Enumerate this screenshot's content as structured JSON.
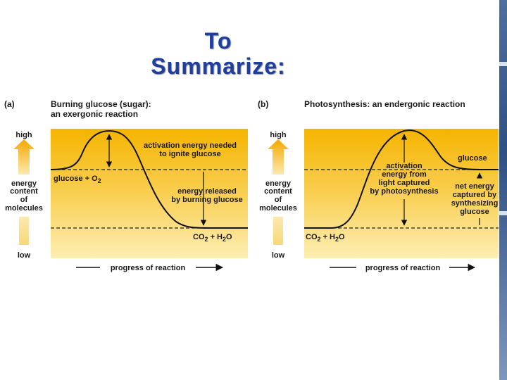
{
  "title": {
    "line1": "To",
    "line2": "Summarize:"
  },
  "panel_a": {
    "letter": "(a)",
    "heading_line1": "Burning glucose (sugar):",
    "heading_line2": "an exergonic reaction",
    "axis_high": "high",
    "axis_low": "low",
    "axis_title_lines": [
      "energy",
      "content",
      "of",
      "molecules"
    ],
    "start_label": "glucose + O",
    "start_label_sub": "2",
    "activation_lines": [
      "activation energy needed",
      "to ignite glucose"
    ],
    "released_lines": [
      "energy released",
      "by burning glucose"
    ],
    "end_label_parts": [
      "CO",
      "2",
      " + H",
      "2",
      "O"
    ],
    "x_axis_label": "progress of reaction"
  },
  "panel_b": {
    "letter": "(b)",
    "heading_line1": "Photosynthesis: an endergonic reaction",
    "axis_high": "high",
    "axis_low": "low",
    "axis_title_lines": [
      "energy",
      "content",
      "of",
      "molecules"
    ],
    "glucose_label": "glucose",
    "activation_lines": [
      "activation",
      "energy from",
      "light captured",
      "by photosynthesis"
    ],
    "net_lines": [
      "net energy",
      "captured by",
      "synthesizing",
      "glucose"
    ],
    "start_label_parts": [
      "CO",
      "2",
      " + H",
      "2",
      "O"
    ],
    "x_axis_label": "progress of reaction"
  },
  "colors": {
    "title": "#1f3f9f",
    "band_top": "#f5b400",
    "band_bottom": "#fde9a6",
    "arrow": "#f5ad14",
    "edge_bar": "#2e4f83"
  }
}
